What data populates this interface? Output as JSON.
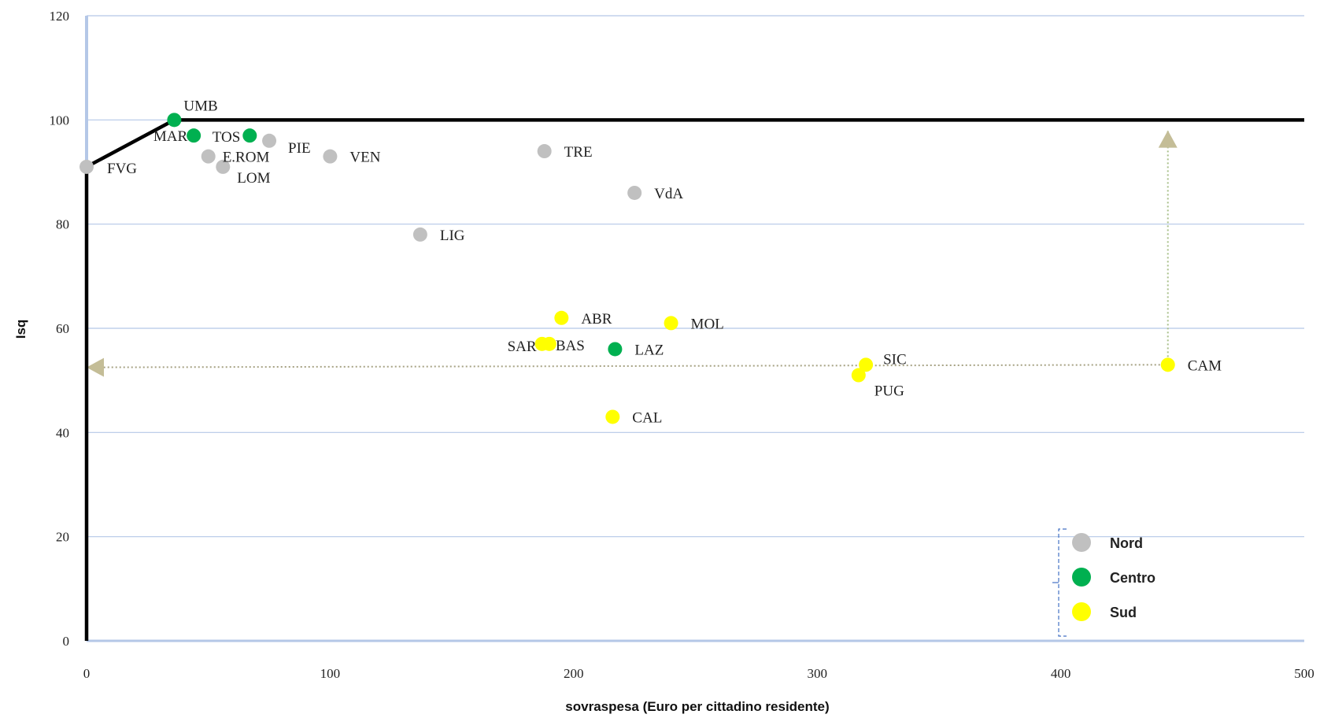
{
  "chart_data": {
    "type": "scatter",
    "title": "",
    "xlabel": "sovraspesa (Euro per cittadino residente)",
    "ylabel": "Isq",
    "xlim": [
      0,
      500
    ],
    "ylim": [
      0,
      120
    ],
    "x_ticks": [
      0,
      100,
      200,
      300,
      400,
      500
    ],
    "y_ticks": [
      0,
      20,
      40,
      60,
      80,
      100,
      120
    ],
    "grid": "horizontal",
    "legend_position": "bottom-right",
    "groups": [
      {
        "name": "Nord",
        "color": "#c0c0c0"
      },
      {
        "name": "Centro",
        "color": "#00b050"
      },
      {
        "name": "Sud",
        "color": "#ffff00"
      }
    ],
    "points": [
      {
        "label": "FVG",
        "group": "Nord",
        "x": 0,
        "y": 91
      },
      {
        "label": "UMB",
        "group": "Centro",
        "x": 36,
        "y": 100
      },
      {
        "label": "MAR",
        "group": "Centro",
        "x": 44,
        "y": 97
      },
      {
        "label": "TOS",
        "group": "Centro",
        "x": 67,
        "y": 97
      },
      {
        "label": "PIE",
        "group": "Nord",
        "x": 75,
        "y": 96
      },
      {
        "label": "E.ROM",
        "group": "Nord",
        "x": 50,
        "y": 93
      },
      {
        "label": "LOM",
        "group": "Nord",
        "x": 56,
        "y": 91
      },
      {
        "label": "VEN",
        "group": "Nord",
        "x": 100,
        "y": 93
      },
      {
        "label": "TRE",
        "group": "Nord",
        "x": 188,
        "y": 94
      },
      {
        "label": "VdA",
        "group": "Nord",
        "x": 225,
        "y": 86
      },
      {
        "label": "LIG",
        "group": "Nord",
        "x": 137,
        "y": 78
      },
      {
        "label": "ABR",
        "group": "Sud",
        "x": 195,
        "y": 62
      },
      {
        "label": "MOL",
        "group": "Sud",
        "x": 240,
        "y": 61
      },
      {
        "label": "SAR",
        "group": "Sud",
        "x": 187,
        "y": 57
      },
      {
        "label": "BAS",
        "group": "Sud",
        "x": 190,
        "y": 57
      },
      {
        "label": "LAZ",
        "group": "Centro",
        "x": 217,
        "y": 56
      },
      {
        "label": "SIC",
        "group": "Sud",
        "x": 320,
        "y": 53
      },
      {
        "label": "PUG",
        "group": "Sud",
        "x": 317,
        "y": 51
      },
      {
        "label": "CAM",
        "group": "Sud",
        "x": 444,
        "y": 53
      },
      {
        "label": "CAL",
        "group": "Sud",
        "x": 216,
        "y": 43
      }
    ],
    "frontier": {
      "x": [
        0,
        0,
        36,
        500
      ],
      "y": [
        0,
        91,
        100,
        100
      ]
    },
    "annotations": [
      {
        "type": "dotted-arrow",
        "from": [
          444,
          53
        ],
        "to": [
          0,
          52.5
        ],
        "direction": "left"
      },
      {
        "type": "dotted-arrow",
        "from": [
          444,
          53
        ],
        "to": [
          444,
          98
        ],
        "direction": "up"
      }
    ]
  }
}
